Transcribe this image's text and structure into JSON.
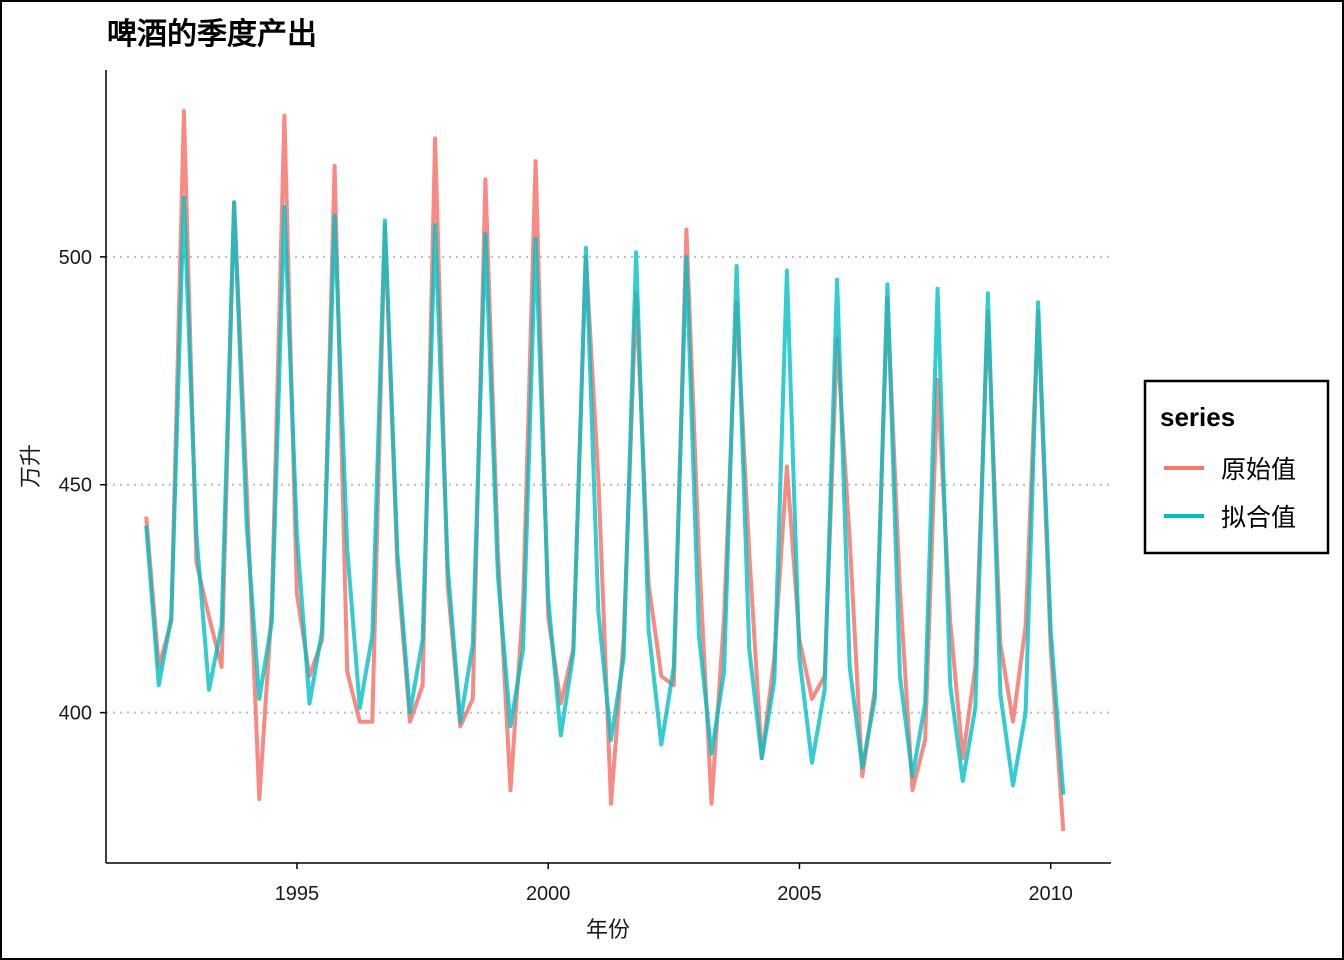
{
  "chart_data": {
    "type": "line",
    "title": "啤酒的季度产出",
    "xlabel": "年份",
    "ylabel": "万升",
    "xlim": [
      1991.2,
      2011.2
    ],
    "ylim": [
      367,
      541
    ],
    "x_ticks": [
      1995,
      2000,
      2005,
      2010
    ],
    "y_ticks": [
      400,
      450,
      500
    ],
    "grid": {
      "horizontal_major": true,
      "style": "dotted"
    },
    "legend": {
      "title": "series",
      "position": "right"
    },
    "x_start": 1992.0,
    "x_step": 0.25,
    "series": [
      {
        "name": "原始值",
        "color": "#f8766d",
        "values": [
          443,
          410,
          420,
          532,
          433,
          421,
          410,
          512,
          449,
          381,
          423,
          531,
          426,
          408,
          416,
          520,
          409,
          398,
          398,
          507,
          432,
          398,
          406,
          526,
          428,
          397,
          403,
          517,
          435,
          383,
          424,
          521,
          421,
          402,
          414,
          500,
          451,
          380,
          416,
          492,
          428,
          408,
          406,
          506,
          435,
          380,
          421,
          490,
          435,
          390,
          412,
          454,
          416,
          403,
          408,
          482,
          438,
          386,
          405,
          491,
          427,
          383,
          394,
          473,
          420,
          390,
          410,
          488,
          415,
          398,
          419,
          488,
          414,
          374
        ]
      },
      {
        "name": "拟合值",
        "color": "#00bfc4",
        "values": [
          441,
          406,
          421,
          513,
          439,
          405,
          419,
          512,
          441,
          403,
          420,
          511,
          439,
          402,
          418,
          509,
          436,
          401,
          417,
          508,
          435,
          400,
          416,
          507,
          432,
          398,
          415,
          505,
          430,
          397,
          414,
          504,
          425,
          395,
          413,
          502,
          422,
          394,
          412,
          501,
          418,
          393,
          410,
          500,
          417,
          391,
          409,
          498,
          414,
          390,
          407,
          497,
          412,
          389,
          405,
          495,
          410,
          388,
          403,
          494,
          408,
          386,
          402,
          493,
          406,
          385,
          401,
          492,
          404,
          384,
          400,
          490,
          418,
          382
        ]
      }
    ]
  }
}
